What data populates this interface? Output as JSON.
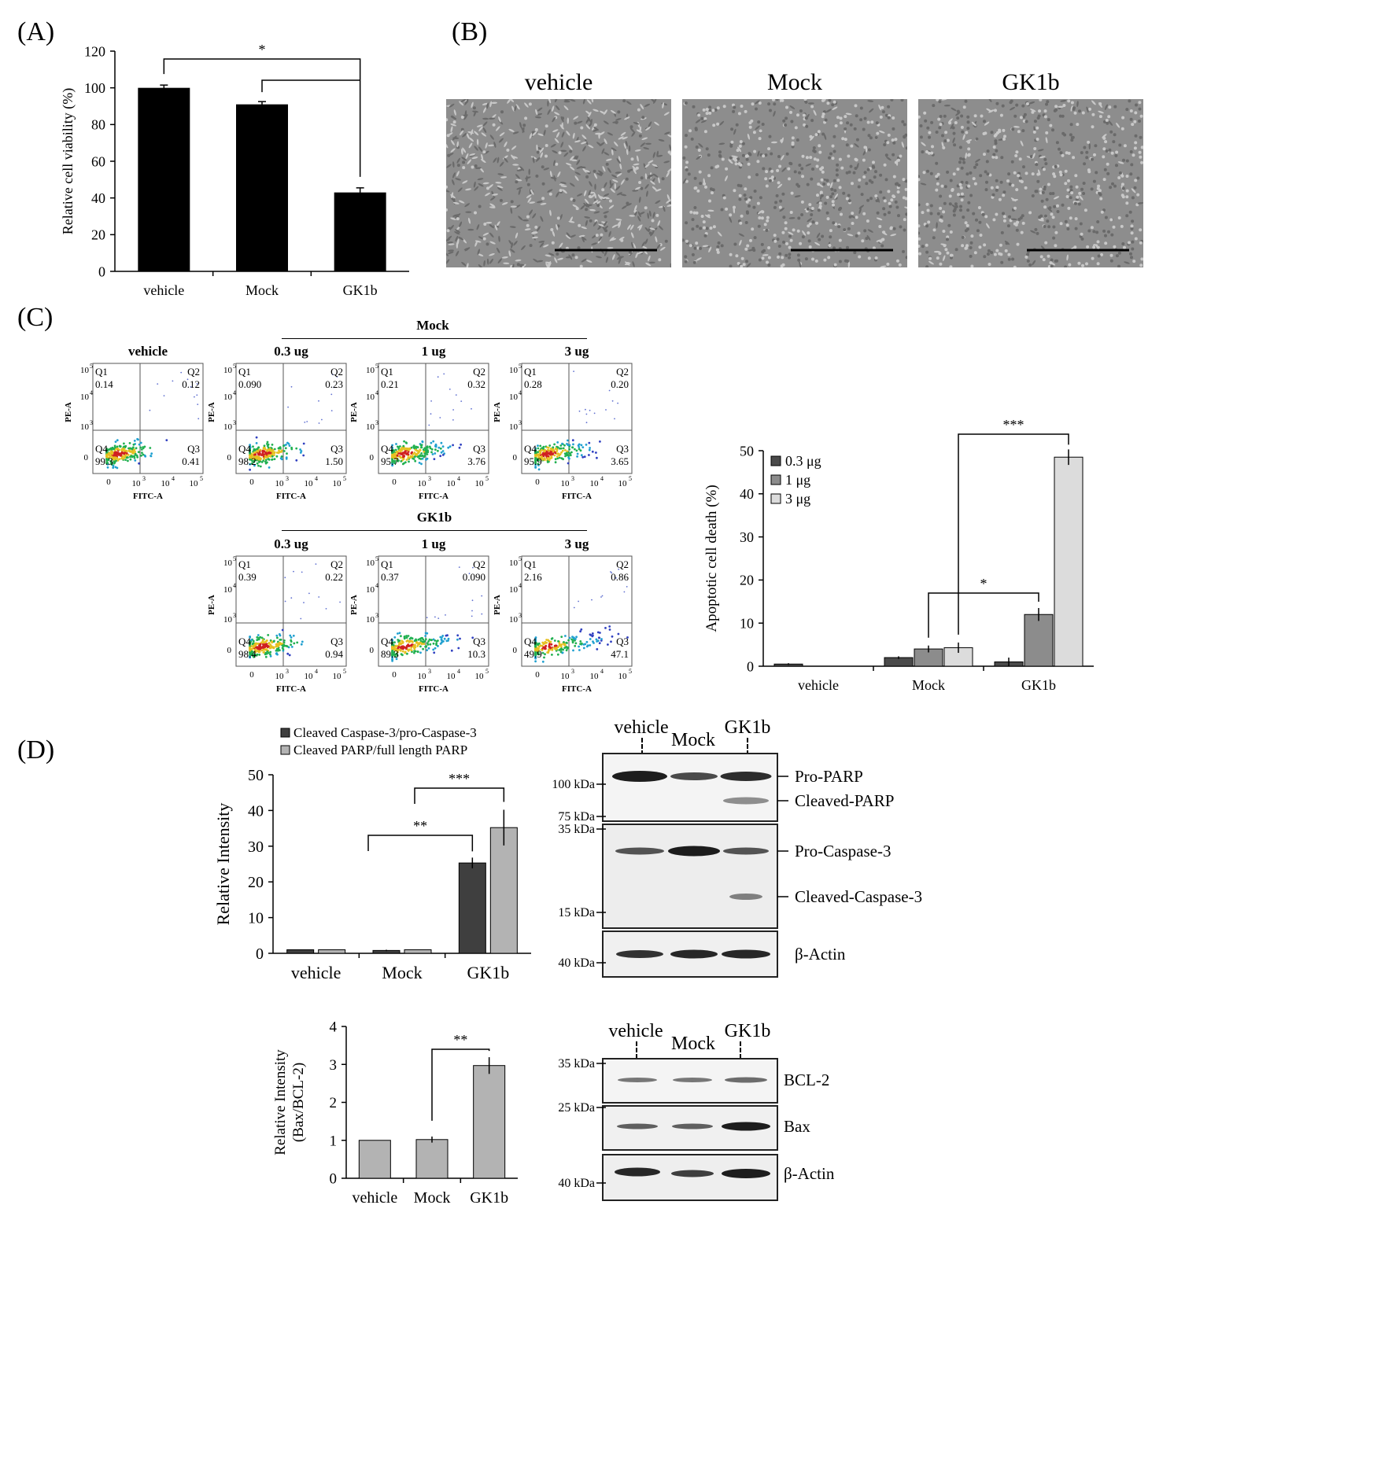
{
  "panels": {
    "A": "(A)",
    "B": "(B)",
    "C": "(C)",
    "D": "(D)"
  },
  "chart_data": [
    {
      "id": "A",
      "type": "bar",
      "categories": [
        "vehicle",
        "Mock",
        "GK1b"
      ],
      "values": [
        100,
        91,
        43
      ],
      "errors": [
        1.5,
        1.5,
        2.5
      ],
      "ylabel": "Relative cell viability (%)",
      "ylim": [
        0,
        120
      ],
      "yticks": [
        0,
        20,
        40,
        60,
        80,
        100,
        120
      ],
      "colors": [
        "#000000"
      ],
      "significance": [
        {
          "from": "vehicle",
          "to": "GK1b",
          "label": "*"
        },
        {
          "from": "Mock",
          "to": "GK1b",
          "label": ""
        }
      ]
    },
    {
      "id": "C-bar",
      "type": "bar",
      "categories": [
        "vehicle",
        "Mock",
        "GK1b"
      ],
      "series": [
        {
          "name": "0.3 μg",
          "values": [
            0.5,
            2,
            1
          ],
          "errors": [
            0.2,
            0.3,
            1
          ]
        },
        {
          "name": "1 μg",
          "values": [
            0,
            4,
            12
          ],
          "errors": [
            0,
            0.8,
            1.5
          ]
        },
        {
          "name": "3 μg",
          "values": [
            0,
            4.3,
            48.5
          ],
          "errors": [
            0,
            1.2,
            1.8
          ]
        }
      ],
      "colors": [
        "#4a4a4a",
        "#8c8c8c",
        "#dcdcdc"
      ],
      "ylabel": "Apoptotic cell death (%)",
      "ylim": [
        0,
        50
      ],
      "yticks": [
        0,
        10,
        20,
        30,
        40,
        50
      ],
      "legend": "top-left",
      "significance": [
        {
          "label": "*"
        },
        {
          "label": "***"
        }
      ]
    },
    {
      "id": "D-top",
      "type": "bar",
      "categories": [
        "vehicle",
        "Mock",
        "GK1b"
      ],
      "series": [
        {
          "name": "Cleaved Caspase-3/pro-Caspase-3",
          "values": [
            1,
            0.8,
            25.3
          ],
          "errors": [
            0,
            0.2,
            1.5
          ]
        },
        {
          "name": "Cleaved PARP/full length PARP",
          "values": [
            1,
            1,
            35.2
          ],
          "errors": [
            0,
            0,
            5
          ]
        }
      ],
      "colors": [
        "#3f3f3f",
        "#b3b3b3"
      ],
      "ylabel": "Relative Intensity",
      "ylim": [
        0,
        50
      ],
      "yticks": [
        0,
        10,
        20,
        30,
        40,
        50
      ],
      "legend": "top",
      "significance": [
        {
          "label": "**"
        },
        {
          "label": "***"
        }
      ]
    },
    {
      "id": "D-bottom",
      "type": "bar",
      "categories": [
        "vehicle",
        "Mock",
        "GK1b"
      ],
      "values": [
        1,
        1.02,
        2.97
      ],
      "errors": [
        0,
        0.08,
        0.22
      ],
      "colors": [
        "#b3b3b3"
      ],
      "ylabel": [
        "Relative Intensity",
        "(Bax/BCL-2)"
      ],
      "ylim": [
        0,
        4
      ],
      "yticks": [
        0,
        1,
        2,
        3,
        4
      ],
      "significance": [
        {
          "label": "**"
        }
      ]
    }
  ],
  "micrographs": {
    "titles": [
      "vehicle",
      "Mock",
      "GK1b"
    ]
  },
  "flow": {
    "mock_header": "Mock",
    "gk1b_header": "GK1b",
    "plots": [
      {
        "title": "vehicle",
        "q1": "0.14",
        "q2": "0.12",
        "q3": "0.41",
        "q4": "99.3",
        "spread": 0.15
      },
      {
        "title": "0.3 ug",
        "q1": "0.090",
        "q2": "0.23",
        "q3": "1.50",
        "q4": "98.2",
        "spread": 0.3
      },
      {
        "title": "1 ug",
        "q1": "0.21",
        "q2": "0.32",
        "q3": "3.76",
        "q4": "95.7",
        "spread": 0.45
      },
      {
        "title": "3 ug",
        "q1": "0.28",
        "q2": "0.20",
        "q3": "3.65",
        "q4": "95.9",
        "spread": 0.45
      },
      {
        "title": "0.3 ug",
        "q1": "0.39",
        "q2": "0.22",
        "q3": "0.94",
        "q4": "98.4",
        "spread": 0.25
      },
      {
        "title": "1 ug",
        "q1": "0.37",
        "q2": "0.090",
        "q3": "10.3",
        "q4": "89.3",
        "spread": 0.7
      },
      {
        "title": "3 ug",
        "q1": "2.16",
        "q2": "0.86",
        "q3": "47.1",
        "q4": "49.9",
        "spread": 1.0
      }
    ],
    "ylabel": "PE-A",
    "xlabel": "FITC-A",
    "q_names": [
      "Q1",
      "Q2",
      "Q3",
      "Q4"
    ],
    "ticks": {
      "zero": "0",
      "ten": "10",
      "e3": "3",
      "e4": "4",
      "e5": "5"
    }
  },
  "blots": {
    "top": {
      "lanes": [
        "vehicle",
        "Mock",
        "GK1b"
      ],
      "markers": [
        "100 kDa",
        "75 kDa",
        "35 kDa",
        "15 kDa",
        "40 kDa"
      ],
      "labels": [
        "Pro-PARP",
        "Cleaved-PARP",
        "Pro-Caspase-3",
        "Cleaved-Caspase-3",
        "β-Actin"
      ]
    },
    "bottom": {
      "lanes": [
        "vehicle",
        "Mock",
        "GK1b"
      ],
      "markers": [
        "35 kDa",
        "25 kDa",
        "40 kDa"
      ],
      "labels": [
        "BCL-2",
        "Bax",
        "β-Actin"
      ]
    }
  }
}
